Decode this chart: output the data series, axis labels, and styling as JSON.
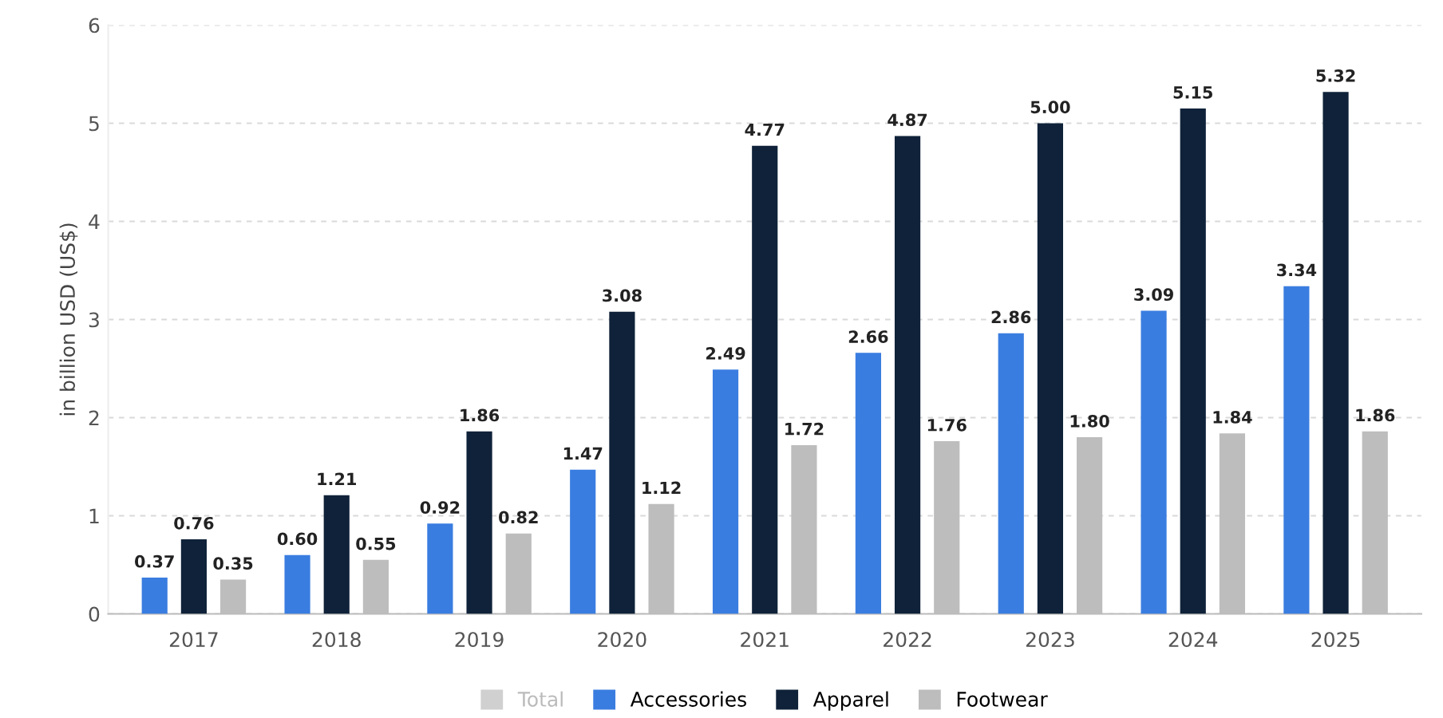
{
  "chart_data": {
    "type": "bar",
    "ylabel": "in billion USD (US$)",
    "categories": [
      "2017",
      "2018",
      "2019",
      "2020",
      "2021",
      "2022",
      "2023",
      "2024",
      "2025"
    ],
    "series": [
      {
        "name": "Total",
        "color": "#d0d0d0",
        "values": [
          null,
          null,
          null,
          null,
          null,
          null,
          null,
          null,
          null
        ]
      },
      {
        "name": "Accessories",
        "color": "#3a7de0",
        "values": [
          0.37,
          0.6,
          0.92,
          1.47,
          2.49,
          2.66,
          2.86,
          3.09,
          3.34
        ],
        "value_labels": [
          "0.37",
          "0.60",
          "0.92",
          "1.47",
          "2.49",
          "2.66",
          "2.86",
          "3.09",
          "3.34"
        ]
      },
      {
        "name": "Apparel",
        "color": "#0f2239",
        "values": [
          0.76,
          1.21,
          1.86,
          3.08,
          4.77,
          4.87,
          5.0,
          5.15,
          5.32
        ],
        "value_labels": [
          "0.76",
          "1.21",
          "1.86",
          "3.08",
          "4.77",
          "4.87",
          "5.00",
          "5.15",
          "5.32"
        ]
      },
      {
        "name": "Footwear",
        "color": "#bdbdbd",
        "values": [
          0.35,
          0.55,
          0.82,
          1.12,
          1.72,
          1.76,
          1.8,
          1.84,
          1.86
        ],
        "value_labels": [
          "0.35",
          "0.55",
          "0.82",
          "1.12",
          "1.72",
          "1.76",
          "1.80",
          "1.84",
          "1.86"
        ]
      }
    ],
    "ylim": [
      0,
      6
    ],
    "yticks": [
      0,
      1,
      2,
      3,
      4,
      5,
      6
    ],
    "grid": "y",
    "legend": "bottom"
  }
}
